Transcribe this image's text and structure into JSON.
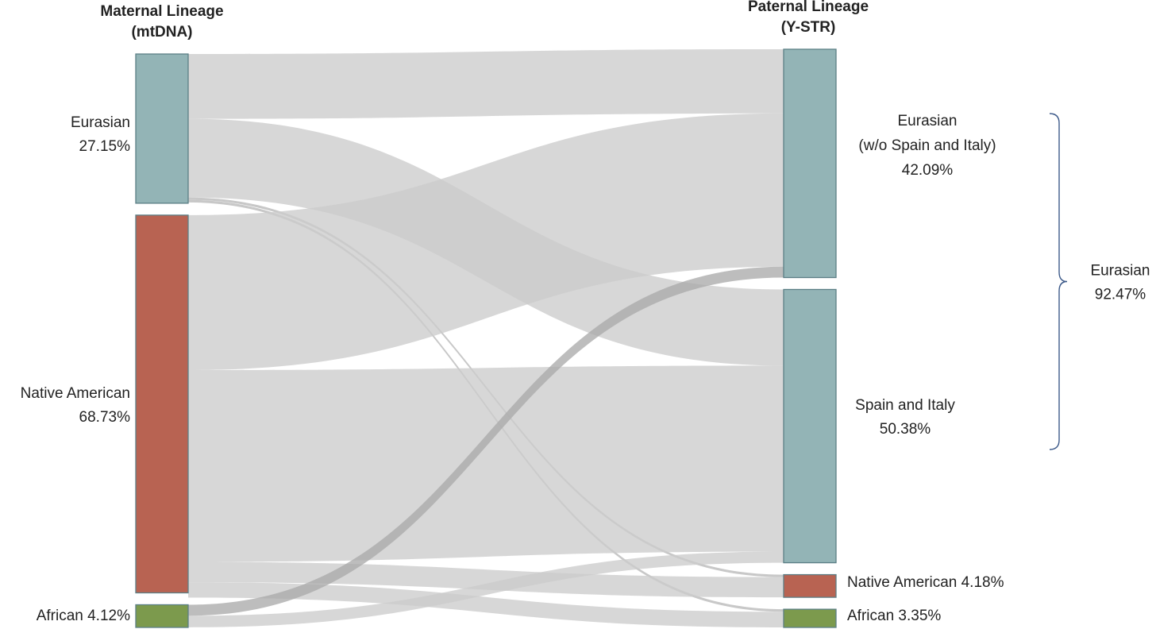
{
  "chart_data": {
    "type": "sankey",
    "left_title": [
      "Maternal Lineage",
      "(mtDNA)"
    ],
    "right_title": [
      "Paternal Lineage",
      "(Y-STR)"
    ],
    "left_nodes": [
      {
        "id": "m_eur",
        "lines": [
          "Eurasian",
          "27.15%"
        ],
        "value": 27.15,
        "color": "#93b4b6"
      },
      {
        "id": "m_nat",
        "lines": [
          "Native American",
          "68.73%"
        ],
        "value": 68.73,
        "color": "#b86352"
      },
      {
        "id": "m_afr",
        "lines": [
          "African  4.12%"
        ],
        "value": 4.12,
        "color": "#7c9a4d"
      }
    ],
    "right_nodes": [
      {
        "id": "p_eur",
        "lines": [
          "Eurasian",
          "(w/o Spain and Italy)",
          "42.09%"
        ],
        "value": 42.09,
        "color": "#93b4b6"
      },
      {
        "id": "p_si",
        "lines": [
          "Spain and Italy",
          "50.38%"
        ],
        "value": 50.38,
        "color": "#93b4b6"
      },
      {
        "id": "p_nat",
        "lines": [
          "Native American 4.18%"
        ],
        "value": 4.18,
        "color": "#b86352"
      },
      {
        "id": "p_afr",
        "lines": [
          "African  3.35%"
        ],
        "value": 3.35,
        "color": "#7c9a4d"
      }
    ],
    "bracket": {
      "lines": [
        "Eurasian",
        "92.47%"
      ],
      "value": 92.47,
      "spans": [
        "p_eur",
        "p_si"
      ]
    },
    "flows": [
      {
        "source": "m_eur",
        "target": "p_eur",
        "value": 11.8,
        "color": "#cccccc"
      },
      {
        "source": "m_eur",
        "target": "p_si",
        "value": 14.3,
        "color": "#cccccc"
      },
      {
        "source": "m_eur",
        "target": "p_nat",
        "value": 0.45,
        "color": "#b8b8b8"
      },
      {
        "source": "m_eur",
        "target": "p_afr",
        "value": 0.45,
        "color": "#b8b8b8"
      },
      {
        "source": "m_nat",
        "target": "p_eur",
        "value": 28.2,
        "color": "#cccccc"
      },
      {
        "source": "m_nat",
        "target": "p_si",
        "value": 34.9,
        "color": "#cccccc"
      },
      {
        "source": "m_nat",
        "target": "p_nat",
        "value": 3.7,
        "color": "#cccccc"
      },
      {
        "source": "m_nat",
        "target": "p_afr",
        "value": 2.8,
        "color": "#cccccc"
      },
      {
        "source": "m_afr",
        "target": "p_eur",
        "value": 2.0,
        "color": "#aaaaaa"
      },
      {
        "source": "m_afr",
        "target": "p_si",
        "value": 2.1,
        "color": "#cccccc"
      }
    ]
  }
}
